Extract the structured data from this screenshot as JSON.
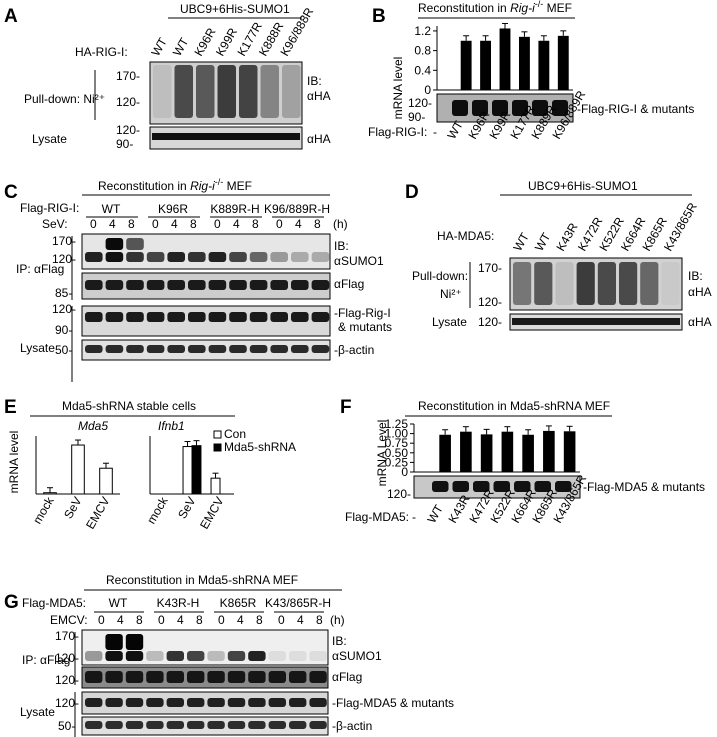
{
  "panels": {
    "A": {
      "letter": "A",
      "header": "UBC9+6His-SUMO1",
      "row_label": "HA-RIG-I:",
      "lanes": [
        "WT",
        "WT",
        "K96R",
        "K99R",
        "K177R",
        "K888R",
        "K96/888R"
      ],
      "pulldown": "Pull-down: Ni²⁺",
      "mw_top": [
        "170-",
        "120-"
      ],
      "ib": "IB:",
      "ab": "αHA",
      "lysate": "Lysate",
      "mw_lys": [
        "120-",
        "90-"
      ],
      "ab_lys": "αHA"
    },
    "B": {
      "letter": "B",
      "title": "Reconstitution in ",
      "title_italic": "Rig-i",
      "title_sup": "-/-",
      "title_end": " MEF",
      "ylabel": "mRNA level",
      "yticks": [
        "1.2",
        "0.8",
        "0.4",
        "0"
      ],
      "blot_mw": [
        "120-",
        "90-"
      ],
      "blot_label": "-Flag-RIG-I & mutants",
      "row_label": "Flag-RIG-I:",
      "dash": "-",
      "lanes": [
        "WT",
        "K96R",
        "K99R",
        "K177R",
        "K889R",
        "K96/889R"
      ]
    },
    "C": {
      "letter": "C",
      "title": "Reconstitution in ",
      "title_italic": "Rig-i",
      "title_sup": "-/-",
      "title_end": " MEF",
      "row_label": "Flag-RIG-I:",
      "groups": [
        "WT",
        "K96R",
        "K889R-H",
        "K96/889R-H"
      ],
      "time_label": "SeV:",
      "times": [
        "0",
        "4",
        "8"
      ],
      "h": "(h)",
      "ip": "IP: αFlag",
      "mw_ip": [
        "170-",
        "120-"
      ],
      "ib": "IB:",
      "ab1": "αSUMO1",
      "mw_flag": "85-",
      "ab2": "αFlag",
      "lysate": "Lysate",
      "mw_lys": [
        "120-",
        "90-"
      ],
      "lys1a": "-Flag-Rig-I",
      "lys1b": "& mutants",
      "mw_actin": "50-",
      "lys2": "-β-actin"
    },
    "D": {
      "letter": "D",
      "header": "UBC9+6His-SUMO1",
      "row_label": "HA-MDA5:",
      "lanes": [
        "WT",
        "WT",
        "K43R",
        "K472R",
        "K522R",
        "K664R",
        "K865R",
        "K43/865R"
      ],
      "pulldown1": "Pull-down:",
      "pulldown2": "Ni²⁺",
      "mw_top": [
        "170-",
        "120-"
      ],
      "ib": "IB:",
      "ab": "αHA",
      "lysate": "Lysate",
      "mw_lys": "120-",
      "ab_lys": "αHA"
    },
    "E": {
      "letter": "E",
      "title": "Mda5-shRNA stable cells",
      "ylabel": "mRNA level",
      "gene1": "Mda5",
      "gene2": "Ifnb1",
      "xcats": [
        "mock",
        "SeV",
        "EMCV"
      ],
      "legend_con": "Con",
      "legend_sh": "Mda5-shRNA"
    },
    "F": {
      "letter": "F",
      "title": "Reconstitution in Mda5-shRNA MEF",
      "ylabel": "mRNA Level",
      "yticks": [
        "1.25",
        "1.00",
        "0.75",
        "0.50",
        "0.25",
        "0"
      ],
      "blot_mw": "120-",
      "blot_label": "-Flag-MDA5 & mutants",
      "row_label": "Flag-MDA5:",
      "dash": "-",
      "lanes": [
        "WT",
        "K43R",
        "K472R",
        "K522R",
        "K664R",
        "K865R",
        "K43/865R"
      ]
    },
    "G": {
      "letter": "G",
      "title": "Reconstitution in Mda5-shRNA MEF",
      "row_label": "Flag-MDA5:",
      "groups": [
        "WT",
        "K43R-H",
        "K865R",
        "K43/865R-H"
      ],
      "time_label": "EMCV:",
      "times": [
        "0",
        "4",
        "8"
      ],
      "h": "(h)",
      "ip": "IP: αFlag",
      "mw_ip": [
        "170-",
        "120-"
      ],
      "ib": "IB:",
      "ab1": "αSUMO1",
      "mw_flag": "120-",
      "ab2": "αFlag",
      "lysate": "Lysate",
      "mw_lys": "120-",
      "lys1": "-Flag-MDA5 & mutants",
      "mw_actin": "50-",
      "lys2": "-β-actin"
    }
  },
  "chart_data": [
    {
      "panel": "B",
      "type": "bar",
      "categories": [
        "-",
        "WT",
        "K96R",
        "K99R",
        "K177R",
        "K889R",
        "K96/889R"
      ],
      "values": [
        0,
        1.0,
        1.0,
        1.25,
        1.08,
        1.0,
        1.1
      ],
      "ylabel": "mRNA level",
      "ylim": [
        0,
        1.3
      ],
      "colors": [
        "#000000"
      ]
    },
    {
      "panel": "E",
      "type": "bar",
      "title": "Mda5",
      "categories": [
        "mock",
        "SeV",
        "EMCV"
      ],
      "series": [
        {
          "name": "Con",
          "values": [
            1,
            38,
            20
          ]
        }
      ],
      "ylabel": "mRNA level"
    },
    {
      "panel": "E",
      "type": "bar",
      "title": "Ifnb1",
      "categories": [
        "mock",
        "SeV",
        "EMCV"
      ],
      "series": [
        {
          "name": "Con",
          "values": [
            0,
            270,
            90
          ]
        },
        {
          "name": "Mda5-shRNA",
          "values": [
            0,
            275,
            0
          ]
        }
      ],
      "ylabel": "mRNA level"
    },
    {
      "panel": "F",
      "type": "bar",
      "categories": [
        "-",
        "WT",
        "K43R",
        "K472R",
        "K522R",
        "K664R",
        "K865R",
        "K43/865R"
      ],
      "values": [
        0,
        0.97,
        1.05,
        0.98,
        1.05,
        0.97,
        1.07,
        1.06
      ],
      "ylabel": "mRNA Level",
      "ylim": [
        0,
        1.25
      ],
      "colors": [
        "#000000"
      ]
    }
  ]
}
